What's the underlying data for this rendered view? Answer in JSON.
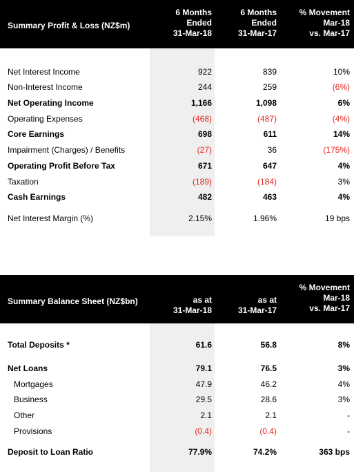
{
  "pl": {
    "title": "Summary Profit & Loss (NZ$m)",
    "headers": [
      [
        "6 Months",
        "Ended",
        "31-Mar-18"
      ],
      [
        "6 Months",
        "Ended",
        "31-Mar-17"
      ],
      [
        "% Movement",
        "Mar-18",
        "vs. Mar-17"
      ]
    ],
    "rows": [
      {
        "label": "Net Interest Income",
        "v1": "922",
        "v2": "839",
        "v3": "10%",
        "bold": false,
        "neg": [
          false,
          false,
          false
        ]
      },
      {
        "label": "Non-Interest Income",
        "v1": "244",
        "v2": "259",
        "v3": "(6%)",
        "bold": false,
        "neg": [
          false,
          false,
          true
        ]
      },
      {
        "label": "Net Operating Income",
        "v1": "1,166",
        "v2": "1,098",
        "v3": "6%",
        "bold": true,
        "neg": [
          false,
          false,
          false
        ]
      },
      {
        "label": "Operating Expenses",
        "v1": "(468)",
        "v2": "(487)",
        "v3": "(4%)",
        "bold": false,
        "neg": [
          true,
          true,
          true
        ]
      },
      {
        "label": "Core Earnings",
        "v1": "698",
        "v2": "611",
        "v3": "14%",
        "bold": true,
        "neg": [
          false,
          false,
          false
        ]
      },
      {
        "label": "Impairment (Charges) / Benefits",
        "v1": "(27)",
        "v2": "36",
        "v3": "(175%)",
        "bold": false,
        "neg": [
          true,
          false,
          true
        ]
      },
      {
        "label": "Operating Profit Before Tax",
        "v1": "671",
        "v2": "647",
        "v3": "4%",
        "bold": true,
        "neg": [
          false,
          false,
          false
        ]
      },
      {
        "label": "Taxation",
        "v1": "(189)",
        "v2": "(184)",
        "v3": "3%",
        "bold": false,
        "neg": [
          true,
          true,
          false
        ]
      },
      {
        "label": "Cash Earnings",
        "v1": "482",
        "v2": "463",
        "v3": "4%",
        "bold": true,
        "neg": [
          false,
          false,
          false
        ]
      },
      {
        "label": "Net Interest Margin (%)",
        "v1": "2.15%",
        "v2": "1.96%",
        "v3": "19 bps",
        "bold": false,
        "neg": [
          false,
          false,
          false
        ]
      }
    ]
  },
  "bs": {
    "title": "Summary Balance Sheet (NZ$bn)",
    "headers": [
      [
        "as at",
        "31-Mar-18"
      ],
      [
        "as at",
        "31-Mar-17"
      ],
      [
        "% Movement",
        "Mar-18",
        "vs. Mar-17"
      ]
    ],
    "rows": [
      {
        "label": "Total Deposits *",
        "v1": "61.6",
        "v2": "56.8",
        "v3": "8%",
        "bold": true,
        "indent": false,
        "neg": [
          false,
          false,
          false
        ]
      },
      {
        "label": "Net Loans",
        "v1": "79.1",
        "v2": "76.5",
        "v3": "3%",
        "bold": true,
        "indent": false,
        "neg": [
          false,
          false,
          false
        ]
      },
      {
        "label": "Mortgages",
        "v1": "47.9",
        "v2": "46.2",
        "v3": "4%",
        "bold": false,
        "indent": true,
        "neg": [
          false,
          false,
          false
        ]
      },
      {
        "label": "Business",
        "v1": "29.5",
        "v2": "28.6",
        "v3": "3%",
        "bold": false,
        "indent": true,
        "neg": [
          false,
          false,
          false
        ]
      },
      {
        "label": "Other",
        "v1": "2.1",
        "v2": "2.1",
        "v3": "-",
        "bold": false,
        "indent": true,
        "neg": [
          false,
          false,
          false
        ]
      },
      {
        "label": "Provisions",
        "v1": "(0.4)",
        "v2": "(0.4)",
        "v3": "-",
        "bold": false,
        "indent": true,
        "neg": [
          true,
          true,
          false
        ]
      },
      {
        "label": "Deposit to Loan Ratio",
        "v1": "77.9%",
        "v2": "74.2%",
        "v3": "363 bps",
        "bold": true,
        "indent": false,
        "neg": [
          false,
          false,
          false
        ]
      }
    ]
  },
  "colors": {
    "header_bg": "#000000",
    "header_text": "#ffffff",
    "negative": "#e0271f",
    "shade": "#efefef"
  }
}
